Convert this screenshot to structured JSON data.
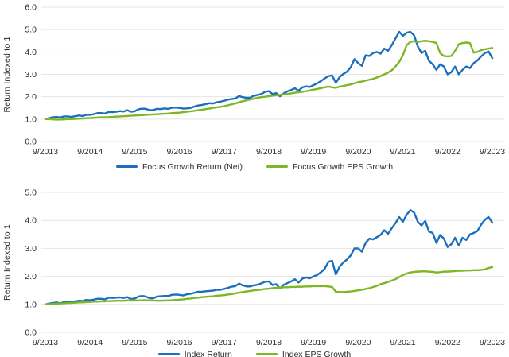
{
  "page": {
    "background": "#ffffff",
    "grid_color": "#e5e5e5",
    "text_color": "#2d2d2d"
  },
  "chart_data": [
    {
      "type": "line",
      "title": "",
      "ylabel": "Return Indexed to 1",
      "ylim": [
        0,
        6
      ],
      "yticks": [
        0,
        1,
        2,
        3,
        4,
        5,
        6
      ],
      "ytick_labels": [
        "0.0",
        "1.0",
        "2.0",
        "3.0",
        "4.0",
        "5.0",
        "6.0"
      ],
      "x_tick_labels": [
        "9/2013",
        "9/2014",
        "9/2015",
        "9/2016",
        "9/2017",
        "9/2018",
        "9/2019",
        "9/2020",
        "9/2021",
        "9/2022",
        "9/2023"
      ],
      "x_points_per_tick": 12,
      "grid": "horizontal",
      "legend_position": "bottom",
      "series": [
        {
          "name": "Focus Growth Return (Net)",
          "color": "#1c6fbc",
          "values": [
            1.0,
            1.04,
            1.08,
            1.1,
            1.07,
            1.12,
            1.12,
            1.1,
            1.13,
            1.16,
            1.14,
            1.19,
            1.19,
            1.22,
            1.27,
            1.27,
            1.25,
            1.32,
            1.31,
            1.33,
            1.36,
            1.34,
            1.4,
            1.33,
            1.35,
            1.44,
            1.47,
            1.46,
            1.4,
            1.41,
            1.46,
            1.45,
            1.48,
            1.46,
            1.51,
            1.52,
            1.5,
            1.47,
            1.48,
            1.5,
            1.56,
            1.61,
            1.63,
            1.67,
            1.71,
            1.7,
            1.75,
            1.78,
            1.82,
            1.87,
            1.9,
            1.92,
            2.03,
            1.98,
            1.95,
            1.96,
            2.05,
            2.08,
            2.12,
            2.22,
            2.25,
            2.12,
            2.16,
            2.02,
            2.15,
            2.24,
            2.3,
            2.38,
            2.27,
            2.42,
            2.46,
            2.44,
            2.52,
            2.6,
            2.7,
            2.82,
            2.92,
            2.95,
            2.62,
            2.88,
            3.02,
            3.12,
            3.32,
            3.68,
            3.5,
            3.38,
            3.85,
            3.82,
            3.95,
            4.0,
            3.92,
            4.15,
            4.05,
            4.3,
            4.6,
            4.9,
            4.72,
            4.86,
            4.9,
            4.75,
            4.25,
            3.95,
            4.05,
            3.6,
            3.45,
            3.2,
            3.45,
            3.35,
            3.0,
            3.1,
            3.35,
            3.0,
            3.2,
            3.35,
            3.28,
            3.5,
            3.62,
            3.8,
            3.95,
            4.02,
            3.72
          ]
        },
        {
          "name": "Focus Growth EPS Growth",
          "color": "#7db726",
          "values": [
            1.0,
            1.0,
            0.99,
            0.98,
            0.98,
            0.99,
            1.0,
            1.0,
            1.01,
            1.02,
            1.03,
            1.04,
            1.05,
            1.06,
            1.07,
            1.08,
            1.08,
            1.09,
            1.1,
            1.11,
            1.12,
            1.13,
            1.14,
            1.15,
            1.16,
            1.17,
            1.18,
            1.19,
            1.2,
            1.21,
            1.22,
            1.23,
            1.24,
            1.25,
            1.27,
            1.28,
            1.29,
            1.31,
            1.33,
            1.35,
            1.37,
            1.4,
            1.42,
            1.45,
            1.47,
            1.5,
            1.53,
            1.55,
            1.58,
            1.62,
            1.66,
            1.7,
            1.75,
            1.8,
            1.84,
            1.88,
            1.92,
            1.95,
            1.98,
            2.0,
            2.02,
            2.05,
            2.07,
            2.08,
            2.1,
            2.12,
            2.15,
            2.18,
            2.2,
            2.22,
            2.25,
            2.28,
            2.32,
            2.35,
            2.38,
            2.42,
            2.45,
            2.42,
            2.4,
            2.45,
            2.48,
            2.52,
            2.55,
            2.6,
            2.65,
            2.68,
            2.72,
            2.76,
            2.8,
            2.86,
            2.92,
            3.0,
            3.08,
            3.18,
            3.35,
            3.55,
            3.85,
            4.3,
            4.45,
            4.48,
            4.45,
            4.48,
            4.5,
            4.48,
            4.45,
            4.4,
            3.95,
            3.82,
            3.8,
            3.82,
            4.05,
            4.35,
            4.4,
            4.42,
            4.4,
            3.97,
            4.0,
            4.08,
            4.12,
            4.15,
            4.18
          ]
        }
      ]
    },
    {
      "type": "line",
      "title": "",
      "ylabel": "Return Indexed to 1",
      "ylim": [
        0,
        5
      ],
      "yticks": [
        0,
        1,
        2,
        3,
        4,
        5
      ],
      "ytick_labels": [
        "0.0",
        "1.0",
        "2.0",
        "3.0",
        "4.0",
        "5.0"
      ],
      "x_tick_labels": [
        "9/2013",
        "9/2014",
        "9/2015",
        "9/2016",
        "9/2017",
        "9/2018",
        "9/2019",
        "9/2020",
        "9/2021",
        "9/2022",
        "9/2023"
      ],
      "x_points_per_tick": 12,
      "grid": "horizontal",
      "legend_position": "bottom",
      "series": [
        {
          "name": "Index Return",
          "color": "#1c6fbc",
          "values": [
            1.0,
            1.03,
            1.05,
            1.07,
            1.04,
            1.08,
            1.09,
            1.09,
            1.11,
            1.13,
            1.12,
            1.16,
            1.15,
            1.17,
            1.2,
            1.2,
            1.18,
            1.24,
            1.23,
            1.24,
            1.25,
            1.23,
            1.26,
            1.19,
            1.21,
            1.28,
            1.3,
            1.28,
            1.22,
            1.22,
            1.28,
            1.29,
            1.3,
            1.3,
            1.34,
            1.35,
            1.34,
            1.32,
            1.36,
            1.38,
            1.41,
            1.45,
            1.45,
            1.47,
            1.48,
            1.49,
            1.52,
            1.52,
            1.55,
            1.59,
            1.63,
            1.65,
            1.74,
            1.68,
            1.64,
            1.64,
            1.68,
            1.7,
            1.75,
            1.81,
            1.82,
            1.69,
            1.72,
            1.57,
            1.7,
            1.76,
            1.82,
            1.9,
            1.78,
            1.92,
            1.96,
            1.93,
            2.0,
            2.05,
            2.15,
            2.27,
            2.52,
            2.56,
            2.07,
            2.35,
            2.5,
            2.6,
            2.75,
            3.0,
            3.0,
            2.88,
            3.2,
            3.35,
            3.32,
            3.4,
            3.48,
            3.65,
            3.52,
            3.72,
            3.9,
            4.12,
            3.95,
            4.2,
            4.37,
            4.28,
            3.95,
            3.82,
            3.98,
            3.6,
            3.55,
            3.2,
            3.48,
            3.35,
            3.05,
            3.15,
            3.38,
            3.1,
            3.38,
            3.3,
            3.5,
            3.55,
            3.62,
            3.85,
            4.02,
            4.12,
            3.92
          ]
        },
        {
          "name": "Index EPS Growth",
          "color": "#7db726",
          "values": [
            1.0,
            1.01,
            1.02,
            1.03,
            1.03,
            1.04,
            1.05,
            1.05,
            1.06,
            1.07,
            1.07,
            1.08,
            1.09,
            1.1,
            1.1,
            1.11,
            1.11,
            1.12,
            1.12,
            1.13,
            1.13,
            1.13,
            1.14,
            1.14,
            1.14,
            1.14,
            1.15,
            1.15,
            1.14,
            1.14,
            1.13,
            1.13,
            1.14,
            1.14,
            1.15,
            1.16,
            1.17,
            1.18,
            1.2,
            1.21,
            1.23,
            1.24,
            1.26,
            1.27,
            1.28,
            1.29,
            1.31,
            1.32,
            1.33,
            1.35,
            1.37,
            1.39,
            1.42,
            1.44,
            1.46,
            1.48,
            1.5,
            1.51,
            1.53,
            1.55,
            1.56,
            1.58,
            1.59,
            1.6,
            1.61,
            1.61,
            1.62,
            1.62,
            1.63,
            1.63,
            1.64,
            1.64,
            1.65,
            1.65,
            1.65,
            1.65,
            1.64,
            1.62,
            1.45,
            1.44,
            1.44,
            1.45,
            1.46,
            1.48,
            1.5,
            1.52,
            1.55,
            1.58,
            1.62,
            1.66,
            1.72,
            1.76,
            1.8,
            1.85,
            1.9,
            1.97,
            2.05,
            2.1,
            2.14,
            2.16,
            2.17,
            2.18,
            2.18,
            2.17,
            2.16,
            2.14,
            2.15,
            2.17,
            2.17,
            2.18,
            2.19,
            2.2,
            2.2,
            2.21,
            2.21,
            2.22,
            2.22,
            2.23,
            2.25,
            2.3,
            2.33
          ]
        }
      ]
    }
  ]
}
